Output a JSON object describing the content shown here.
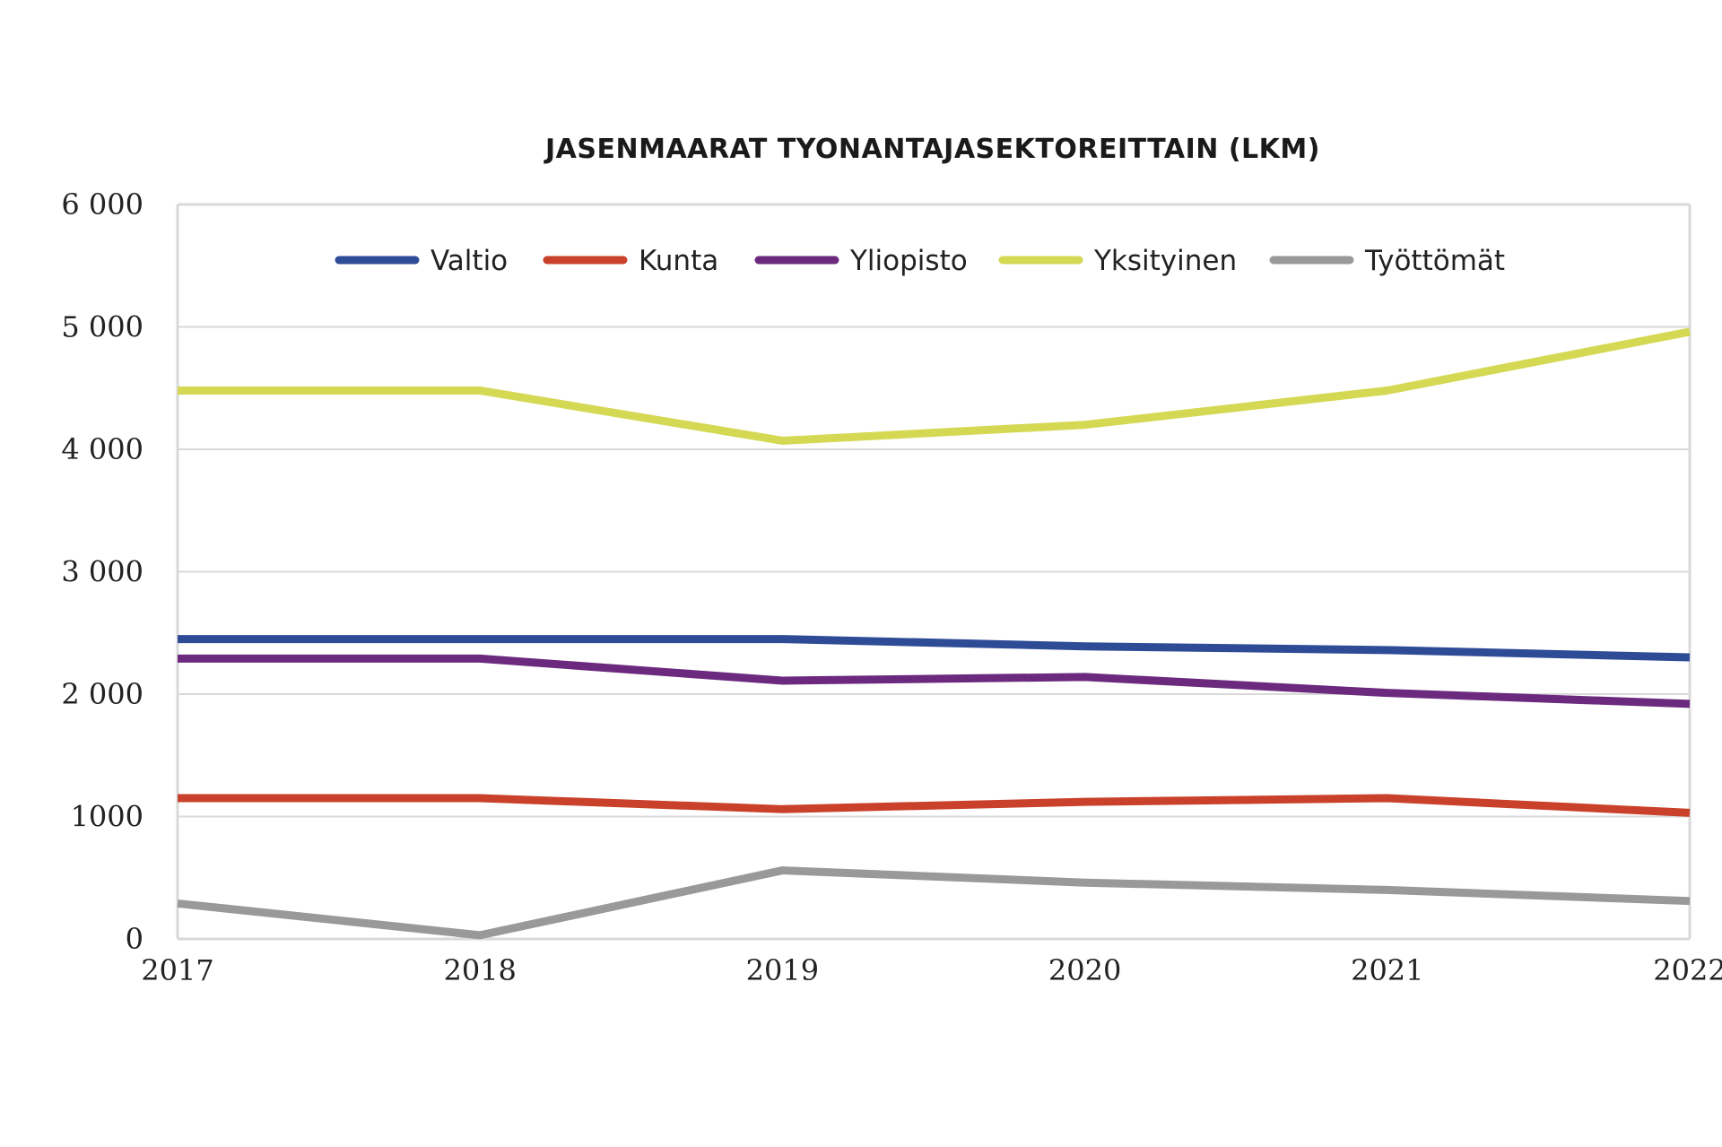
{
  "chart_data": {
    "type": "line",
    "title": "JASENMAARAT TYONANTAJASEKTOREITTAIN (LKM)",
    "xlabel": "",
    "ylabel": "",
    "categories": [
      "2017",
      "2018",
      "2019",
      "2020",
      "2021",
      "2022"
    ],
    "ylim": [
      0,
      6000
    ],
    "yticks": [
      0,
      1000,
      2000,
      3000,
      4000,
      5000,
      6000
    ],
    "ytick_labels": [
      "0",
      "1000",
      "2 000",
      "3 000",
      "4 000",
      "5 000",
      "6 000"
    ],
    "grid": true,
    "legend_position": "top-center",
    "series": [
      {
        "name": "Valtio",
        "color": "#2e4b96",
        "values": [
          2450,
          2450,
          2450,
          2390,
          2360,
          2300
        ]
      },
      {
        "name": "Kunta",
        "color": "#c9412a",
        "values": [
          1150,
          1150,
          1060,
          1120,
          1150,
          1030
        ]
      },
      {
        "name": "Yliopisto",
        "color": "#6b2a7e",
        "values": [
          2290,
          2290,
          2110,
          2140,
          2010,
          1920
        ]
      },
      {
        "name": "Yksityinen",
        "color": "#d4d853",
        "values": [
          4480,
          4480,
          4070,
          4200,
          4480,
          4960
        ]
      },
      {
        "name": "Työttömät",
        "color": "#999999",
        "values": [
          290,
          30,
          560,
          460,
          400,
          310
        ]
      }
    ]
  }
}
